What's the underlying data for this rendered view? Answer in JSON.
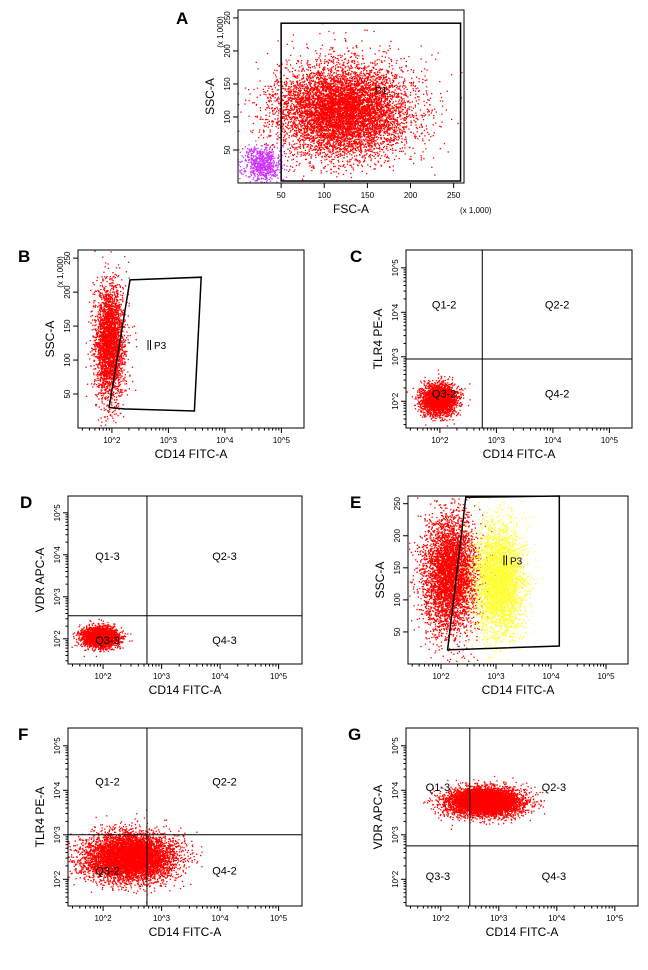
{
  "chart_data": [
    {
      "panel": "A",
      "type": "scatter",
      "xlabel": "FSC-A",
      "ylabel": "SSC-A",
      "x_scale_note": "(x 1,000)",
      "y_scale_note": "(x 1,000)",
      "x_scale": "linear",
      "y_scale": "linear",
      "xlim": [
        0,
        262
      ],
      "ylim": [
        0,
        262
      ],
      "x_ticks": [
        "50",
        "100",
        "150",
        "200",
        "250"
      ],
      "y_ticks": [
        "50",
        "100",
        "150",
        "200",
        "250"
      ],
      "gate": {
        "name": "P1",
        "shape": "rectangle",
        "x": [
          50,
          258
        ],
        "y": [
          3,
          242
        ]
      },
      "populations": [
        {
          "color": "#ff0000",
          "center": [
            120,
            110
          ],
          "spread": [
            55,
            50
          ],
          "n": 7500
        },
        {
          "color": "#cc33ff",
          "center": [
            28,
            30
          ],
          "spread": [
            16,
            20
          ],
          "n": 700
        }
      ]
    },
    {
      "panel": "B",
      "type": "scatter",
      "xlabel": "CD14 FITC-A",
      "ylabel": "SSC-A",
      "y_scale_note": "(x 1,000)",
      "x_scale": "log",
      "y_scale": "linear",
      "xlim": [
        1.4,
        5.4
      ],
      "ylim": [
        0,
        262
      ],
      "x_ticks": [
        "10^2",
        "10^3",
        "10^4",
        "10^5"
      ],
      "y_ticks": [
        "50",
        "100",
        "150",
        "200",
        "250"
      ],
      "gate": {
        "name": "P3",
        "shape": "polygon",
        "points": [
          [
            2.32,
            218
          ],
          [
            3.58,
            222
          ],
          [
            3.46,
            25
          ],
          [
            2.24,
            28
          ],
          [
            1.95,
            30
          ]
        ]
      },
      "populations": [
        {
          "color": "#ff0000",
          "center": [
            1.95,
            125
          ],
          "spread": [
            0.18,
            60
          ],
          "n": 3000
        }
      ]
    },
    {
      "panel": "C",
      "type": "scatter",
      "xlabel": "CD14 FITC-A",
      "ylabel": "TLR4 PE-A",
      "x_scale": "log",
      "y_scale": "log",
      "xlim": [
        1.4,
        5.4
      ],
      "ylim": [
        1.4,
        5.4
      ],
      "x_ticks": [
        "10^2",
        "10^3",
        "10^4",
        "10^5"
      ],
      "y_ticks": [
        "10^2",
        "10^3",
        "10^4",
        "10^5"
      ],
      "quadrant_split": [
        2.75,
        2.95
      ],
      "quadrants": [
        "Q1-2",
        "Q2-2",
        "Q3-2",
        "Q4-2"
      ],
      "populations": [
        {
          "color": "#ff0000",
          "center": [
            1.98,
            2.05
          ],
          "spread": [
            0.22,
            0.25
          ],
          "n": 2600
        }
      ]
    },
    {
      "panel": "D",
      "type": "scatter",
      "xlabel": "CD14 FITC-A",
      "ylabel": "VDR APC-A",
      "x_scale": "log",
      "y_scale": "log",
      "xlim": [
        1.4,
        5.4
      ],
      "ylim": [
        1.4,
        5.4
      ],
      "x_ticks": [
        "10^2",
        "10^3",
        "10^4",
        "10^5"
      ],
      "y_ticks": [
        "10^2",
        "10^3",
        "10^4",
        "10^5"
      ],
      "quadrant_split": [
        2.75,
        2.55
      ],
      "quadrants": [
        "Q1-3",
        "Q2-3",
        "Q3-3",
        "Q4-3"
      ],
      "populations": [
        {
          "color": "#ff0000",
          "center": [
            1.95,
            2.05
          ],
          "spread": [
            0.22,
            0.18
          ],
          "n": 2600
        }
      ]
    },
    {
      "panel": "E",
      "type": "scatter",
      "xlabel": "CD14 FITC-A",
      "ylabel": "SSC-A",
      "x_scale": "log",
      "y_scale": "linear",
      "xlim": [
        1.4,
        5.4
      ],
      "ylim": [
        0,
        262
      ],
      "x_ticks": [
        "10^2",
        "10^3",
        "10^4",
        "10^5"
      ],
      "y_ticks": [
        "50",
        "100",
        "150",
        "200",
        "250"
      ],
      "gate": {
        "name": "P3",
        "shape": "polygon",
        "points": [
          [
            2.45,
            260
          ],
          [
            4.15,
            262
          ],
          [
            4.15,
            28
          ],
          [
            2.12,
            22
          ]
        ]
      },
      "populations": [
        {
          "color": "#ff0000",
          "center": [
            2.15,
            140
          ],
          "spread": [
            0.35,
            65
          ],
          "n": 4500
        },
        {
          "color": "#ffff33",
          "center": [
            3.05,
            130
          ],
          "spread": [
            0.32,
            60
          ],
          "n": 3800
        }
      ]
    },
    {
      "panel": "F",
      "type": "scatter",
      "xlabel": "CD14 FITC-A",
      "ylabel": "TLR4 PE-A",
      "x_scale": "log",
      "y_scale": "log",
      "xlim": [
        1.4,
        5.4
      ],
      "ylim": [
        1.4,
        5.4
      ],
      "x_ticks": [
        "10^2",
        "10^3",
        "10^4",
        "10^5"
      ],
      "y_ticks": [
        "10^2",
        "10^3",
        "10^4",
        "10^5"
      ],
      "quadrant_split": [
        2.75,
        3.0
      ],
      "quadrants": [
        "Q1-2",
        "Q2-2",
        "Q3-2",
        "Q4-2"
      ],
      "populations": [
        {
          "color": "#ff0000",
          "center": [
            2.45,
            2.5
          ],
          "spread": [
            0.55,
            0.38
          ],
          "n": 6500
        }
      ]
    },
    {
      "panel": "G",
      "type": "scatter",
      "xlabel": "CD14 FITC-A",
      "ylabel": "VDR APC-A",
      "x_scale": "log",
      "y_scale": "log",
      "xlim": [
        1.4,
        5.4
      ],
      "ylim": [
        1.4,
        5.4
      ],
      "x_ticks": [
        "10^2",
        "10^3",
        "10^4",
        "10^5"
      ],
      "y_ticks": [
        "10^2",
        "10^3",
        "10^4",
        "10^5"
      ],
      "quadrant_split": [
        2.5,
        2.75
      ],
      "quadrants": [
        "Q1-3",
        "Q2-3",
        "Q3-3",
        "Q4-3"
      ],
      "populations": [
        {
          "color": "#ff0000",
          "center": [
            2.75,
            3.75
          ],
          "spread": [
            0.45,
            0.22
          ],
          "n": 6000
        }
      ]
    }
  ]
}
